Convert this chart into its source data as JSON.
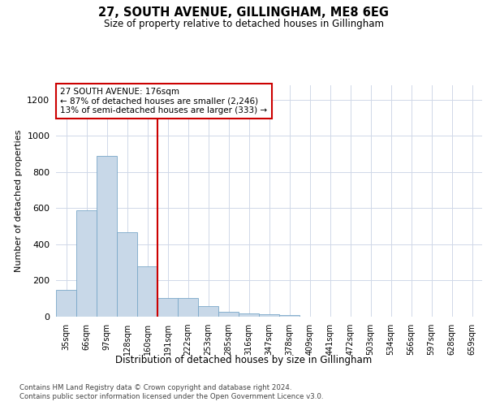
{
  "title": "27, SOUTH AVENUE, GILLINGHAM, ME8 6EG",
  "subtitle": "Size of property relative to detached houses in Gillingham",
  "xlabel": "Distribution of detached houses by size in Gillingham",
  "ylabel": "Number of detached properties",
  "bar_color": "#c8d8e8",
  "bar_edge_color": "#7aa8c8",
  "vline_color": "#cc0000",
  "vline_x": 4.5,
  "annotation_text": "27 SOUTH AVENUE: 176sqm\n← 87% of detached houses are smaller (2,246)\n13% of semi-detached houses are larger (333) →",
  "annotation_box_color": "#cc0000",
  "categories": [
    "35sqm",
    "66sqm",
    "97sqm",
    "128sqm",
    "160sqm",
    "191sqm",
    "222sqm",
    "253sqm",
    "285sqm",
    "316sqm",
    "347sqm",
    "378sqm",
    "409sqm",
    "441sqm",
    "472sqm",
    "503sqm",
    "534sqm",
    "566sqm",
    "597sqm",
    "628sqm",
    "659sqm"
  ],
  "values": [
    150,
    590,
    890,
    465,
    280,
    105,
    105,
    57,
    27,
    20,
    13,
    10,
    0,
    0,
    0,
    0,
    0,
    0,
    0,
    0,
    0
  ],
  "ylim": [
    0,
    1280
  ],
  "yticks": [
    0,
    200,
    400,
    600,
    800,
    1000,
    1200
  ],
  "footer_line1": "Contains HM Land Registry data © Crown copyright and database right 2024.",
  "footer_line2": "Contains public sector information licensed under the Open Government Licence v3.0.",
  "background_color": "#ffffff",
  "grid_color": "#d0d8e8"
}
